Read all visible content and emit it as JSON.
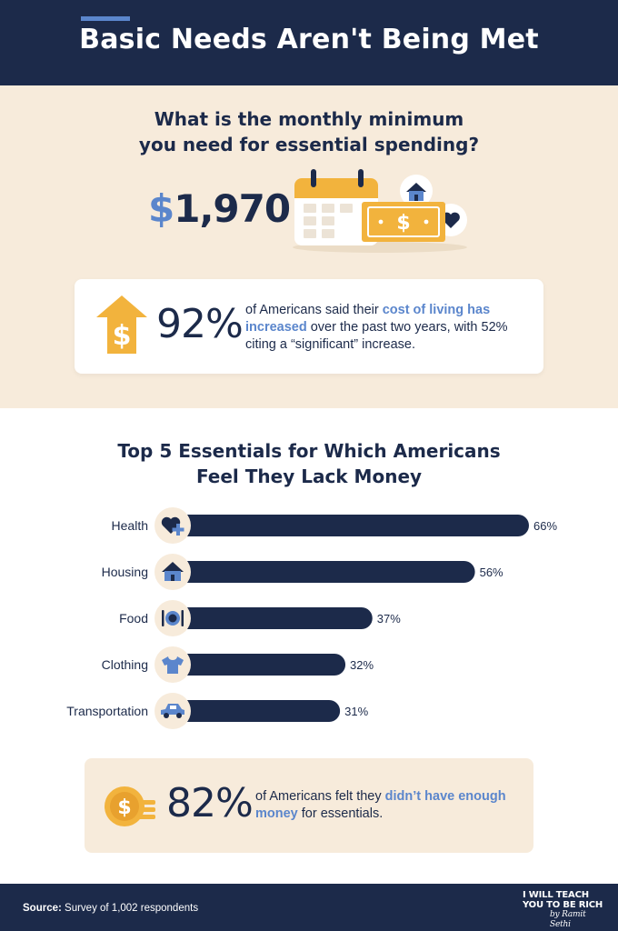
{
  "header": {
    "title": "Basic Needs Aren't Being Met"
  },
  "intro": {
    "question_line1": "What is the monthly minimum",
    "question_line2": "you need for essential spending?",
    "currency": "$",
    "amount": "1,970"
  },
  "stat1": {
    "percent": "92%",
    "text_1": "of Americans said their ",
    "highlight_1": "cost of living",
    "text_2": " ",
    "highlight_2": "has increased",
    "text_3": " over the past two years, with 52% citing a “significant” increase."
  },
  "section2": {
    "title_line1": "Top 5 Essentials for Which Americans",
    "title_line2": "Feel They Lack Money"
  },
  "chart_data": {
    "type": "bar",
    "orientation": "horizontal",
    "title": "Top 5 Essentials for Which Americans Feel They Lack Money",
    "categories": [
      "Health",
      "Housing",
      "Food",
      "Clothing",
      "Transportation"
    ],
    "values": [
      66,
      56,
      37,
      32,
      31
    ],
    "value_labels": [
      "66%",
      "56%",
      "37%",
      "32%",
      "31%"
    ],
    "icons": [
      "heart-plus-icon",
      "house-icon",
      "plate-icon",
      "tshirt-icon",
      "car-icon"
    ],
    "unit": "%",
    "xlim": [
      0,
      66
    ],
    "bar_color": "#1c2a4a",
    "icon_bg_color": "#f7ebdb",
    "icon_color": "#5b86cc"
  },
  "stat2": {
    "percent": "82%",
    "text_1": "of Americans felt they ",
    "highlight_1": "didn’t have enough money",
    "text_2": " for essentials."
  },
  "footer": {
    "source_label": "Source:",
    "source_text": " Survey of 1,002 respondents",
    "logo_line1": "I WILL TEACH",
    "logo_line2": "YOU TO BE RICH",
    "logo_signature": "by Ramit Sethi"
  },
  "colors": {
    "navy": "#1c2a4a",
    "blue": "#5b86cc",
    "cream": "#f7ebdb",
    "gold": "#f2b33d"
  }
}
